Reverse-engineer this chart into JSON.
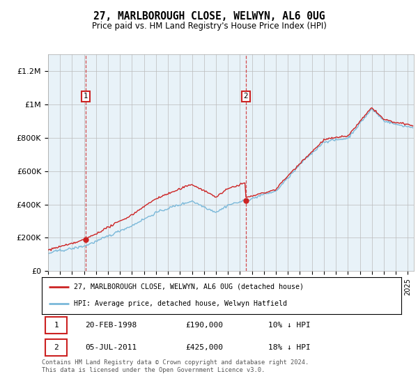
{
  "title": "27, MARLBOROUGH CLOSE, WELWYN, AL6 0UG",
  "subtitle": "Price paid vs. HM Land Registry's House Price Index (HPI)",
  "ylabel_ticks": [
    "£0",
    "£200K",
    "£400K",
    "£600K",
    "£800K",
    "£1M",
    "£1.2M"
  ],
  "ytick_values": [
    0,
    200000,
    400000,
    600000,
    800000,
    1000000,
    1200000
  ],
  "ylim": [
    0,
    1300000
  ],
  "xlim_start": 1995.0,
  "xlim_end": 2025.5,
  "sale1_date": 1998.12,
  "sale1_price": 190000,
  "sale1_label": "1",
  "sale2_date": 2011.5,
  "sale2_price": 425000,
  "sale2_label": "2",
  "hpi_color": "#7ab8d9",
  "price_color": "#cc2222",
  "plot_bg_color": "#e8f2f8",
  "legend_label1": "27, MARLBOROUGH CLOSE, WELWYN, AL6 0UG (detached house)",
  "legend_label2": "HPI: Average price, detached house, Welwyn Hatfield",
  "table_row1": [
    "1",
    "20-FEB-1998",
    "£190,000",
    "10% ↓ HPI"
  ],
  "table_row2": [
    "2",
    "05-JUL-2011",
    "£425,000",
    "18% ↓ HPI"
  ],
  "footer": "Contains HM Land Registry data © Crown copyright and database right 2024.\nThis data is licensed under the Open Government Licence v3.0.",
  "background_color": "#ffffff",
  "grid_color": "#bbbbbb"
}
